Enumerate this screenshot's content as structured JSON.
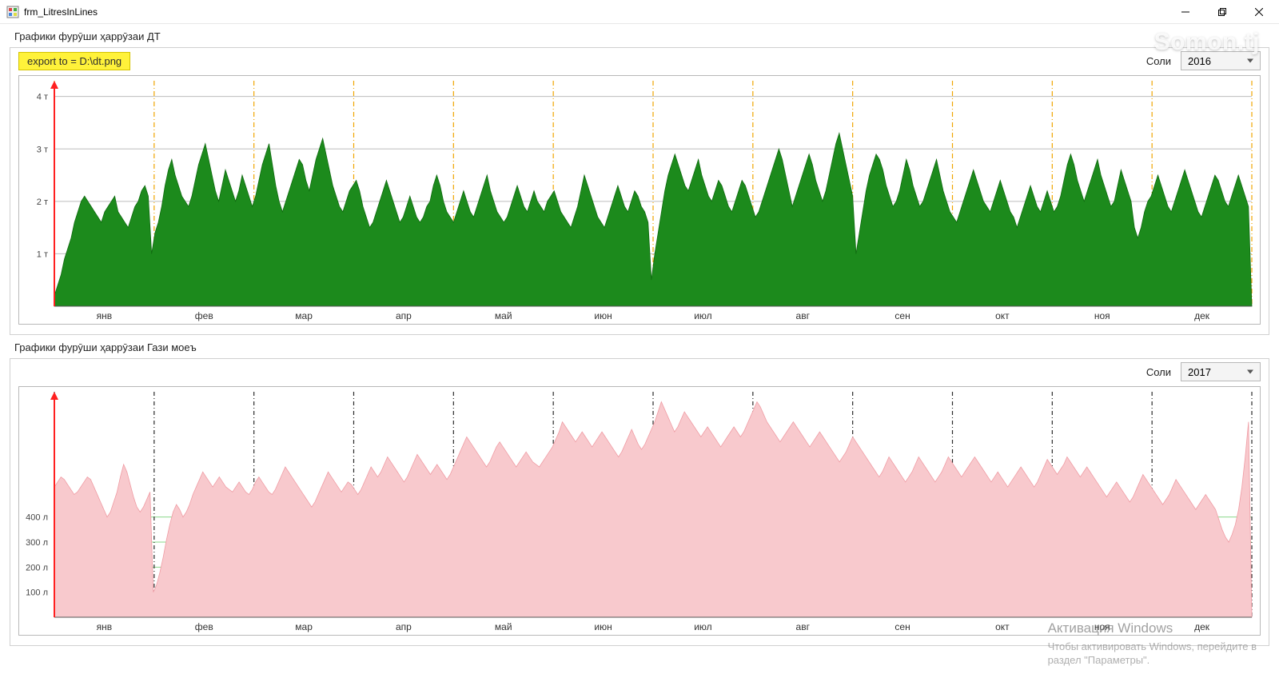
{
  "window": {
    "title": "frm_LitresInLines"
  },
  "watermark": "Somon.tj",
  "activation": {
    "title": "Активация Windows",
    "line1": "Чтобы активировать Windows, перейдите в",
    "line2": "раздел \"Параметры\"."
  },
  "chart1": {
    "panel_title": "Графики фурӯши ҳаррӯзаи ДТ",
    "export_label": "export to = D:\\dt.png",
    "year_label": "Соли",
    "year_value": "2016",
    "type": "area",
    "fill_color": "#1c8a1c",
    "stroke_color": "#0f6b0f",
    "axis_color": "#ff2020",
    "grid_color": "#bdbdbd",
    "month_divider_color": "#f0a500",
    "background_color": "#ffffff",
    "y_tick_suffix": " т",
    "ylim": [
      0,
      4.3
    ],
    "y_ticks": [
      1,
      2,
      3,
      4
    ],
    "months": [
      "янв",
      "фев",
      "мар",
      "апр",
      "май",
      "июн",
      "июл",
      "авг",
      "сен",
      "окт",
      "ноя",
      "дек"
    ],
    "values": [
      0.2,
      0.4,
      0.6,
      0.9,
      1.1,
      1.3,
      1.6,
      1.8,
      2.0,
      2.1,
      2.0,
      1.9,
      1.8,
      1.7,
      1.6,
      1.8,
      1.9,
      2.0,
      2.1,
      1.8,
      1.7,
      1.6,
      1.5,
      1.7,
      1.9,
      2.0,
      2.2,
      2.3,
      2.1,
      1.0,
      1.4,
      1.6,
      1.9,
      2.3,
      2.6,
      2.8,
      2.5,
      2.3,
      2.1,
      2.0,
      1.9,
      2.1,
      2.4,
      2.7,
      2.9,
      3.1,
      2.8,
      2.5,
      2.2,
      2.0,
      2.3,
      2.6,
      2.4,
      2.2,
      2.0,
      2.2,
      2.5,
      2.3,
      2.1,
      1.9,
      2.1,
      2.4,
      2.7,
      2.9,
      3.1,
      2.7,
      2.3,
      2.0,
      1.8,
      2.0,
      2.2,
      2.4,
      2.6,
      2.8,
      2.7,
      2.4,
      2.2,
      2.5,
      2.8,
      3.0,
      3.2,
      2.9,
      2.6,
      2.3,
      2.1,
      1.9,
      1.8,
      2.0,
      2.2,
      2.3,
      2.4,
      2.2,
      1.9,
      1.7,
      1.5,
      1.6,
      1.8,
      2.0,
      2.2,
      2.4,
      2.2,
      2.0,
      1.8,
      1.6,
      1.7,
      1.9,
      2.1,
      1.9,
      1.7,
      1.6,
      1.7,
      1.9,
      2.0,
      2.3,
      2.5,
      2.3,
      2.0,
      1.8,
      1.7,
      1.6,
      1.8,
      2.0,
      2.2,
      2.0,
      1.8,
      1.7,
      1.9,
      2.1,
      2.3,
      2.5,
      2.2,
      2.0,
      1.8,
      1.7,
      1.6,
      1.7,
      1.9,
      2.1,
      2.3,
      2.1,
      1.9,
      1.8,
      2.0,
      2.2,
      2.0,
      1.9,
      1.8,
      2.0,
      2.1,
      2.2,
      2.0,
      1.8,
      1.7,
      1.6,
      1.5,
      1.7,
      1.9,
      2.2,
      2.5,
      2.3,
      2.1,
      1.9,
      1.7,
      1.6,
      1.5,
      1.7,
      1.9,
      2.1,
      2.3,
      2.1,
      1.9,
      1.8,
      2.0,
      2.2,
      2.1,
      1.9,
      1.8,
      1.6,
      0.5,
      1.0,
      1.4,
      1.8,
      2.2,
      2.5,
      2.7,
      2.9,
      2.7,
      2.5,
      2.3,
      2.2,
      2.4,
      2.6,
      2.8,
      2.5,
      2.3,
      2.1,
      2.0,
      2.2,
      2.4,
      2.3,
      2.1,
      1.9,
      1.8,
      2.0,
      2.2,
      2.4,
      2.3,
      2.1,
      1.9,
      1.7,
      1.8,
      2.0,
      2.2,
      2.4,
      2.6,
      2.8,
      3.0,
      2.8,
      2.5,
      2.2,
      1.9,
      2.1,
      2.3,
      2.5,
      2.7,
      2.9,
      2.7,
      2.4,
      2.2,
      2.0,
      2.2,
      2.5,
      2.8,
      3.1,
      3.3,
      3.0,
      2.7,
      2.4,
      2.1,
      1.0,
      1.4,
      1.8,
      2.2,
      2.5,
      2.7,
      2.9,
      2.8,
      2.6,
      2.3,
      2.1,
      1.9,
      2.0,
      2.2,
      2.5,
      2.8,
      2.6,
      2.3,
      2.1,
      1.9,
      2.0,
      2.2,
      2.4,
      2.6,
      2.8,
      2.5,
      2.2,
      2.0,
      1.8,
      1.7,
      1.6,
      1.8,
      2.0,
      2.2,
      2.4,
      2.6,
      2.4,
      2.2,
      2.0,
      1.9,
      1.8,
      2.0,
      2.2,
      2.4,
      2.2,
      2.0,
      1.8,
      1.7,
      1.5,
      1.7,
      1.9,
      2.1,
      2.3,
      2.1,
      1.9,
      1.8,
      2.0,
      2.2,
      2.0,
      1.8,
      1.9,
      2.1,
      2.4,
      2.7,
      2.9,
      2.7,
      2.4,
      2.2,
      2.0,
      2.2,
      2.4,
      2.6,
      2.8,
      2.5,
      2.3,
      2.1,
      1.9,
      2.0,
      2.3,
      2.6,
      2.4,
      2.2,
      2.0,
      1.5,
      1.3,
      1.5,
      1.8,
      2.0,
      2.1,
      2.3,
      2.5,
      2.3,
      2.1,
      1.9,
      1.8,
      2.0,
      2.2,
      2.4,
      2.6,
      2.4,
      2.2,
      2.0,
      1.8,
      1.7,
      1.9,
      2.1,
      2.3,
      2.5,
      2.4,
      2.2,
      2.0,
      1.9,
      2.1,
      2.3,
      2.5,
      2.3,
      2.1,
      1.9,
      0.0
    ]
  },
  "chart2": {
    "panel_title": "Графики фурӯши ҳаррӯзаи Гази моеъ",
    "year_label": "Соли",
    "year_value": "2017",
    "type": "area",
    "fill_color": "#f8c9cd",
    "stroke_color": "#ef9ca4",
    "axis_color": "#ff2020",
    "grid_color": "#8ad88a",
    "month_divider_color": "#2a2a2a",
    "background_color": "#ffffff",
    "y_tick_suffix": " л",
    "ylim": [
      0,
      900
    ],
    "y_ticks": [
      100,
      200,
      300,
      400
    ],
    "months": [
      "янв",
      "фев",
      "мар",
      "апр",
      "май",
      "июн",
      "июл",
      "авг",
      "сен",
      "окт",
      "ноя",
      "дек"
    ],
    "values": [
      520,
      540,
      560,
      550,
      530,
      510,
      490,
      500,
      520,
      540,
      560,
      550,
      520,
      490,
      460,
      430,
      400,
      420,
      460,
      500,
      560,
      610,
      580,
      530,
      480,
      440,
      420,
      440,
      470,
      500,
      100,
      130,
      180,
      240,
      310,
      370,
      420,
      450,
      430,
      400,
      420,
      450,
      490,
      520,
      550,
      580,
      560,
      540,
      520,
      540,
      560,
      540,
      520,
      510,
      500,
      520,
      540,
      520,
      500,
      490,
      510,
      540,
      560,
      540,
      520,
      500,
      490,
      510,
      540,
      570,
      600,
      580,
      560,
      540,
      520,
      500,
      480,
      460,
      440,
      460,
      490,
      520,
      550,
      580,
      560,
      540,
      520,
      500,
      520,
      540,
      530,
      510,
      490,
      510,
      540,
      570,
      600,
      580,
      560,
      580,
      610,
      640,
      620,
      600,
      580,
      560,
      540,
      560,
      590,
      620,
      650,
      630,
      610,
      590,
      570,
      590,
      610,
      590,
      570,
      550,
      570,
      600,
      630,
      660,
      690,
      720,
      700,
      680,
      660,
      640,
      620,
      600,
      620,
      650,
      680,
      700,
      680,
      660,
      640,
      620,
      600,
      620,
      640,
      660,
      640,
      620,
      610,
      600,
      620,
      640,
      660,
      680,
      710,
      740,
      780,
      760,
      740,
      720,
      700,
      720,
      740,
      720,
      700,
      680,
      700,
      720,
      740,
      720,
      700,
      680,
      660,
      640,
      660,
      690,
      720,
      750,
      720,
      690,
      670,
      690,
      720,
      750,
      780,
      820,
      860,
      830,
      800,
      770,
      740,
      760,
      790,
      820,
      800,
      780,
      760,
      740,
      720,
      740,
      760,
      740,
      720,
      700,
      680,
      700,
      720,
      740,
      760,
      740,
      720,
      740,
      770,
      800,
      830,
      860,
      840,
      810,
      780,
      760,
      740,
      720,
      700,
      720,
      740,
      760,
      780,
      760,
      740,
      720,
      700,
      680,
      700,
      720,
      740,
      720,
      700,
      680,
      660,
      640,
      620,
      640,
      660,
      690,
      720,
      700,
      680,
      660,
      640,
      620,
      600,
      580,
      560,
      580,
      610,
      640,
      620,
      600,
      580,
      560,
      540,
      560,
      580,
      610,
      640,
      620,
      600,
      580,
      560,
      540,
      560,
      580,
      610,
      640,
      620,
      600,
      580,
      560,
      580,
      600,
      620,
      640,
      620,
      600,
      580,
      560,
      540,
      560,
      580,
      560,
      540,
      520,
      540,
      560,
      580,
      600,
      580,
      560,
      540,
      520,
      540,
      570,
      600,
      630,
      610,
      590,
      570,
      590,
      610,
      640,
      620,
      600,
      580,
      560,
      580,
      600,
      580,
      560,
      540,
      520,
      500,
      480,
      500,
      520,
      540,
      520,
      500,
      480,
      460,
      480,
      510,
      540,
      570,
      550,
      530,
      510,
      490,
      470,
      450,
      470,
      490,
      520,
      550,
      530,
      510,
      490,
      470,
      450,
      430,
      450,
      470,
      490,
      470,
      450,
      430,
      390,
      350,
      320,
      300,
      330,
      370,
      430,
      520,
      640,
      780,
      0
    ]
  }
}
